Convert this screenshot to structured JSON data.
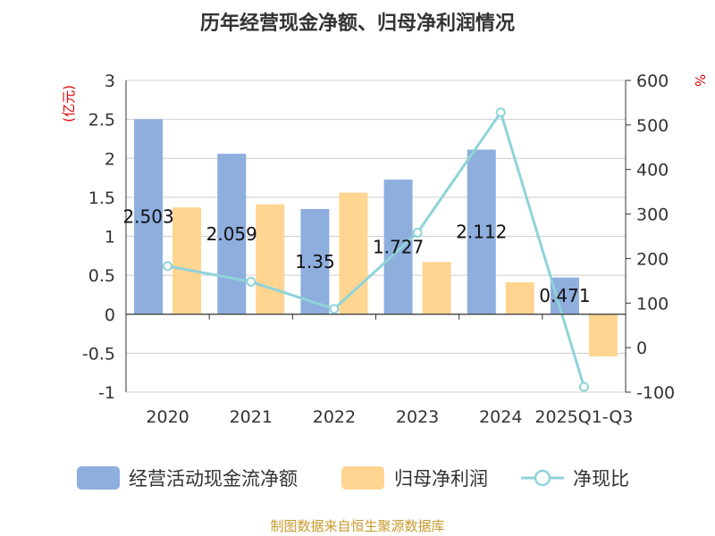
{
  "chart_data": {
    "type": "bar",
    "title": "历年经营现金净额、归母净利润情况",
    "categories": [
      "2020",
      "2021",
      "2022",
      "2023",
      "2024",
      "2025Q1-Q3"
    ],
    "series": [
      {
        "name": "经营活动现金流净额",
        "type": "bar",
        "axis": "left",
        "color": "#8eaede",
        "values": [
          2.503,
          2.059,
          1.35,
          1.727,
          2.112,
          0.471
        ],
        "labels": [
          "2.503",
          "2.059",
          "1.35",
          "1.727",
          "2.112",
          "0.471"
        ]
      },
      {
        "name": "归母净利润",
        "type": "bar",
        "axis": "left",
        "color": "#ffd591",
        "values": [
          1.37,
          1.41,
          1.56,
          0.67,
          0.41,
          -0.54
        ]
      },
      {
        "name": "净现比",
        "type": "line",
        "axis": "right",
        "color": "#8fd3d9",
        "values": [
          183,
          148,
          87,
          258,
          528,
          -88
        ]
      }
    ],
    "y_left": {
      "unit": "(亿元)",
      "ylim": [
        -1,
        3
      ],
      "ticks": [
        "3",
        "2.5",
        "2",
        "1.5",
        "1",
        "0.5",
        "0",
        "-0.5",
        "-1"
      ]
    },
    "y_right": {
      "unit": "%",
      "ylim": [
        -100,
        600
      ],
      "ticks": [
        "600",
        "500",
        "400",
        "300",
        "200",
        "100",
        "0",
        "-100"
      ]
    },
    "legend_position": "bottom",
    "grid": true
  },
  "source": "制图数据来自恒生聚源数据库"
}
